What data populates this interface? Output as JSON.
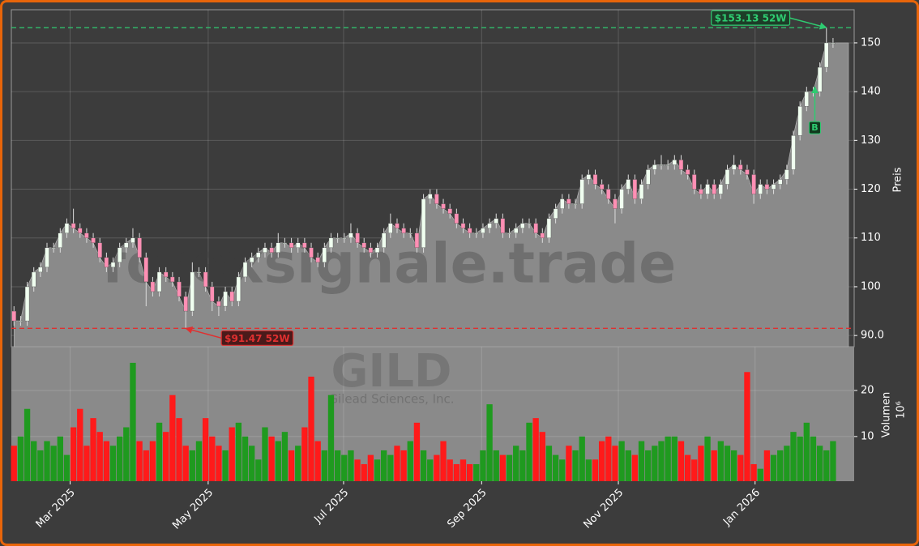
{
  "chart_data": {
    "type": "candlestick",
    "watermark": "forexsignale.trade",
    "ticker": "GILD",
    "company": "Gilead Sciences, Inc.",
    "ylabel": "Preis",
    "volume_label": "Volumen",
    "volume_scale": "10⁶",
    "open": [
      95,
      93,
      93,
      100,
      103,
      104,
      108,
      108,
      111,
      113,
      112,
      111,
      110,
      109,
      106,
      104,
      105,
      108,
      109,
      110,
      106,
      101,
      99,
      103,
      102,
      101,
      98,
      95,
      103,
      103,
      100,
      97,
      96,
      99,
      97,
      102,
      105,
      106,
      107,
      108,
      107,
      109,
      109,
      108,
      109,
      108,
      106,
      105,
      108,
      110,
      110,
      110,
      111,
      109,
      108,
      107,
      108,
      111,
      113,
      112,
      111,
      111,
      108,
      118,
      119,
      117,
      116,
      115,
      113,
      112,
      111,
      111,
      112,
      113,
      114,
      111,
      111,
      112,
      113,
      113,
      111,
      110,
      114,
      116,
      118,
      117,
      117,
      122,
      123,
      121,
      120,
      118,
      116,
      120,
      122,
      118,
      121,
      124,
      125,
      125,
      125,
      126,
      124,
      123,
      120,
      119,
      121,
      119,
      121,
      124,
      125,
      124,
      123,
      119,
      121,
      120,
      121,
      122,
      124,
      131,
      137,
      140,
      140,
      145,
      150
    ],
    "high": [
      96,
      94,
      101,
      104,
      105,
      109,
      109,
      112,
      114,
      116,
      113,
      112,
      111,
      110,
      107,
      106,
      109,
      110,
      112,
      111,
      107,
      102,
      104,
      104,
      103,
      102,
      99,
      105,
      104,
      104,
      101,
      98,
      100,
      100,
      103,
      106,
      107,
      108,
      109,
      109,
      111,
      110,
      110,
      110,
      110,
      109,
      107,
      109,
      111,
      111,
      111,
      113,
      112,
      110,
      109,
      109,
      112,
      115,
      114,
      113,
      112,
      112,
      119,
      120,
      120,
      118,
      117,
      116,
      114,
      113,
      112,
      113,
      114,
      115,
      115,
      112,
      113,
      114,
      114,
      114,
      112,
      115,
      117,
      119,
      119,
      118,
      123,
      124,
      124,
      122,
      121,
      119,
      121,
      123,
      123,
      122,
      125,
      126,
      127,
      126,
      127,
      127,
      125,
      124,
      121,
      122,
      122,
      122,
      125,
      127,
      126,
      125,
      124,
      122,
      122,
      122,
      123,
      125,
      132,
      138,
      141,
      141,
      146,
      153.13,
      151
    ],
    "low": [
      92,
      92,
      92,
      99,
      102,
      103,
      107,
      107,
      110,
      111,
      110,
      109,
      108,
      105,
      103,
      103,
      104,
      107,
      108,
      105,
      96,
      98,
      98,
      101,
      100,
      97,
      91.47,
      94,
      102,
      99,
      95,
      94,
      95,
      96,
      96,
      101,
      104,
      105,
      106,
      106,
      106,
      108,
      107,
      107,
      107,
      105,
      104,
      104,
      107,
      109,
      109,
      109,
      108,
      107,
      106,
      106,
      107,
      110,
      111,
      110,
      110,
      107,
      107,
      117,
      116,
      115,
      114,
      112,
      111,
      110,
      110,
      110,
      111,
      112,
      110,
      110,
      110,
      111,
      112,
      110,
      109,
      109,
      113,
      115,
      116,
      116,
      116,
      121,
      120,
      119,
      117,
      113,
      115,
      119,
      117,
      117,
      120,
      123,
      124,
      124,
      124,
      123,
      122,
      119,
      118,
      118,
      118,
      118,
      120,
      123,
      123,
      122,
      117,
      118,
      119,
      119,
      120,
      121,
      123,
      130,
      136,
      139,
      139,
      144,
      149
    ],
    "close": [
      93,
      93,
      100,
      103,
      104,
      108,
      108,
      111,
      113,
      112,
      111,
      110,
      109,
      106,
      104,
      105,
      108,
      109,
      110,
      106,
      101,
      99,
      103,
      102,
      101,
      98,
      95,
      103,
      103,
      100,
      97,
      96,
      99,
      97,
      102,
      105,
      106,
      107,
      108,
      107,
      109,
      109,
      108,
      109,
      108,
      106,
      105,
      108,
      110,
      110,
      110,
      111,
      109,
      108,
      107,
      108,
      111,
      113,
      112,
      111,
      111,
      108,
      118,
      119,
      117,
      116,
      115,
      113,
      112,
      111,
      111,
      112,
      113,
      114,
      111,
      111,
      112,
      113,
      113,
      111,
      110,
      114,
      116,
      118,
      117,
      117,
      122,
      123,
      121,
      120,
      118,
      116,
      120,
      122,
      118,
      121,
      124,
      125,
      125,
      125,
      126,
      124,
      123,
      120,
      119,
      121,
      119,
      121,
      124,
      125,
      124,
      123,
      119,
      121,
      120,
      121,
      122,
      124,
      131,
      137,
      140,
      140,
      145,
      150,
      150
    ],
    "volume": [
      8,
      10,
      16,
      9,
      7,
      9,
      8,
      10,
      6,
      12,
      16,
      8,
      14,
      11,
      9,
      8,
      10,
      12,
      26,
      9,
      7,
      9,
      13,
      11,
      19,
      14,
      8,
      7,
      9,
      14,
      10,
      8,
      7,
      12,
      13,
      10,
      8,
      5,
      12,
      10,
      9,
      11,
      7,
      8,
      12,
      23,
      9,
      7,
      19,
      7,
      6,
      7,
      5,
      4,
      6,
      5,
      7,
      6,
      8,
      7,
      9,
      13,
      7,
      5,
      6,
      9,
      5,
      4,
      5,
      4,
      4,
      7,
      17,
      7,
      6,
      6,
      8,
      7,
      13,
      14,
      11,
      8,
      6,
      5,
      8,
      7,
      10,
      5,
      5,
      9,
      10,
      8,
      9,
      7,
      6,
      9,
      7,
      8,
      9,
      10,
      10,
      9,
      6,
      5,
      8,
      10,
      7,
      9,
      8,
      7,
      6,
      24,
      4,
      3,
      7,
      6,
      7,
      8,
      11,
      10,
      13,
      10,
      8,
      7,
      9
    ],
    "xlim": [
      -0.4,
      127.2
    ],
    "xticks": [
      {
        "value": 8.5,
        "label": "Mar 2025"
      },
      {
        "value": 29.4,
        "label": "May 2025"
      },
      {
        "value": 49.9,
        "label": "Jul 2025"
      },
      {
        "value": 70.8,
        "label": "Sep 2025"
      },
      {
        "value": 91.5,
        "label": "Nov 2025"
      },
      {
        "value": 112.2,
        "label": "Jan 2026"
      }
    ],
    "ylim": [
      87.7,
      156.8
    ],
    "yticks": [
      {
        "value": 90,
        "label": "90.0"
      },
      100,
      110,
      120,
      130,
      140,
      150
    ],
    "volume_ylim": [
      0.3,
      29.5
    ],
    "volume_ticks": [
      10,
      20
    ],
    "grid": true,
    "up_color": "#1f9a1f",
    "down_color": "#ff1a1a",
    "candle_up_color": "#f0fff0",
    "candle_down_color": "#ff8fb4",
    "area_color": "#8a8a8a",
    "annotations": [
      {
        "text": "$153.13 52W",
        "value": 153.13,
        "index": 123,
        "color": "#2ecc71"
      },
      {
        "text": "$91.47 52W",
        "value": 91.47,
        "index": 26,
        "color": "#e03030"
      }
    ],
    "signals": [
      {
        "text": "B",
        "index": 121,
        "color": "#2ecc71"
      }
    ]
  }
}
